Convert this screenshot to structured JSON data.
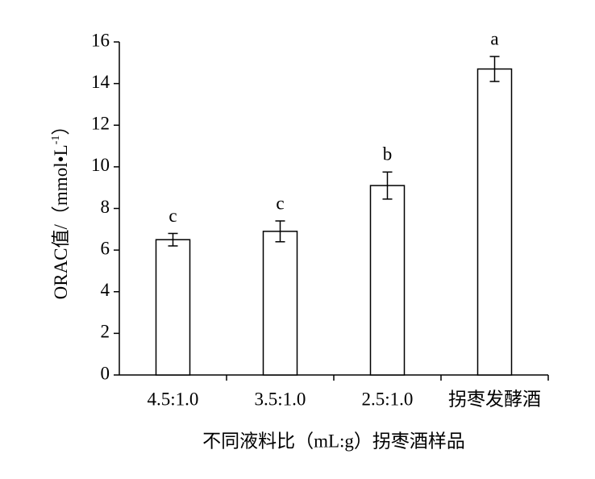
{
  "chart_data": {
    "type": "bar",
    "xlabel": "不同液料比（mL:g）拐枣酒样品",
    "ylabel": {
      "main": "ORAC值/（mmol•L",
      "sup": "-1",
      "close": "）"
    },
    "categories": [
      "4.5:1.0",
      "3.5:1.0",
      "2.5:1.0",
      "拐枣发酵酒"
    ],
    "values": [
      6.5,
      6.9,
      9.1,
      14.7
    ],
    "errors": [
      0.3,
      0.5,
      0.65,
      0.6
    ],
    "significance": [
      "c",
      "c",
      "b",
      "a"
    ],
    "color": "#ffffff",
    "ylim": [
      0,
      16
    ],
    "yticks": [
      0,
      2,
      4,
      6,
      8,
      10,
      12,
      14,
      16
    ]
  }
}
